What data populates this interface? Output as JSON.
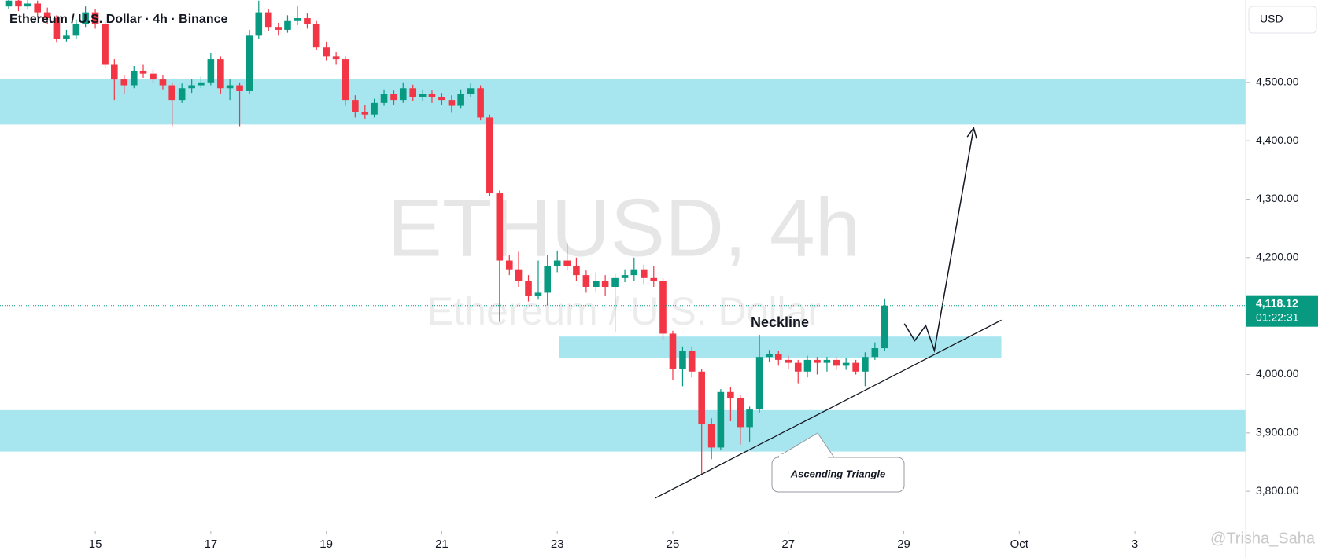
{
  "chart_data": {
    "type": "candlestick",
    "title": "Ethereum / U.S. Dollar · 4h · Binance",
    "currency": "USD",
    "watermark": "ETHUSD, 4h",
    "watermark_subtitle": "Ethereum / U.S. Dollar",
    "x": [
      13.5,
      13.67,
      13.83,
      14,
      14.17,
      14.33,
      14.5,
      14.67,
      14.83,
      15,
      15.17,
      15.33,
      15.5,
      15.67,
      15.83,
      16,
      16.17,
      16.33,
      16.5,
      16.67,
      16.83,
      17,
      17.17,
      17.33,
      17.5,
      17.67,
      17.83,
      18,
      18.17,
      18.33,
      18.5,
      18.67,
      18.83,
      19,
      19.17,
      19.33,
      19.5,
      19.67,
      19.83,
      20,
      20.17,
      20.33,
      20.5,
      20.67,
      20.83,
      21,
      21.17,
      21.33,
      21.5,
      21.67,
      21.83,
      22,
      22.17,
      22.33,
      22.5,
      22.67,
      22.83,
      23,
      23.17,
      23.33,
      23.5,
      23.67,
      23.83,
      24,
      24.17,
      24.33,
      24.5,
      24.67,
      24.83,
      25,
      25.17,
      25.33,
      25.5,
      25.67,
      25.83,
      26,
      26.17,
      26.33,
      26.5,
      26.67,
      26.83,
      27,
      27.17,
      27.33,
      27.5,
      27.67,
      27.83,
      28,
      28.17,
      28.33,
      28.5,
      28.67
    ],
    "open": [
      4630,
      4640,
      4630,
      4635,
      4620,
      4610,
      4575,
      4580,
      4600,
      4620,
      4600,
      4530,
      4505,
      4495,
      4520,
      4515,
      4505,
      4495,
      4470,
      4490,
      4495,
      4500,
      4540,
      4490,
      4495,
      4485,
      4580,
      4620,
      4595,
      4590,
      4605,
      4610,
      4600,
      4560,
      4545,
      4540,
      4470,
      4450,
      4445,
      4465,
      4480,
      4470,
      4490,
      4475,
      4480,
      4475,
      4470,
      4460,
      4480,
      4490,
      4440,
      4310,
      4195,
      4180,
      4160,
      4135,
      4140,
      4185,
      4195,
      4185,
      4170,
      4150,
      4160,
      4150,
      4165,
      4170,
      4180,
      4165,
      4160,
      4070,
      4010,
      4040,
      4005,
      3915,
      3875,
      3970,
      3960,
      3910,
      3940,
      4030,
      4035,
      4025,
      4020,
      4005,
      4025,
      4020,
      4025,
      4015,
      4020,
      4005,
      4030,
      4045
    ],
    "high": [
      4648,
      4645,
      4641,
      4640,
      4628,
      4615,
      4590,
      4608,
      4630,
      4625,
      4605,
      4540,
      4512,
      4528,
      4530,
      4522,
      4512,
      4500,
      4498,
      4505,
      4510,
      4550,
      4545,
      4505,
      4500,
      4590,
      4640,
      4625,
      4602,
      4615,
      4630,
      4618,
      4605,
      4570,
      4552,
      4545,
      4478,
      4462,
      4472,
      4488,
      4486,
      4500,
      4496,
      4488,
      4486,
      4482,
      4478,
      4488,
      4498,
      4495,
      4445,
      4315,
      4205,
      4210,
      4170,
      4195,
      4205,
      4212,
      4225,
      4200,
      4178,
      4175,
      4170,
      4172,
      4180,
      4200,
      4188,
      4185,
      4165,
      4075,
      4048,
      4048,
      4010,
      3925,
      3975,
      3978,
      3965,
      3945,
      4068,
      4042,
      4040,
      4032,
      4025,
      4032,
      4030,
      4030,
      4030,
      4028,
      4025,
      4038,
      4055,
      4130
    ],
    "low": [
      4625,
      4622,
      4625,
      4612,
      4600,
      4568,
      4570,
      4575,
      4595,
      4592,
      4525,
      4470,
      4480,
      4490,
      4508,
      4498,
      4488,
      4425,
      4465,
      4482,
      4490,
      4495,
      4480,
      4470,
      4425,
      4480,
      4575,
      4588,
      4580,
      4585,
      4598,
      4592,
      4555,
      4538,
      4530,
      4460,
      4440,
      4438,
      4440,
      4460,
      4462,
      4465,
      4468,
      4468,
      4465,
      4462,
      4448,
      4455,
      4475,
      4435,
      4305,
      4090,
      4170,
      4150,
      4125,
      4128,
      4118,
      4175,
      4178,
      4160,
      4140,
      4142,
      4135,
      4073,
      4158,
      4160,
      4155,
      4150,
      4060,
      3990,
      3980,
      3995,
      3830,
      3855,
      3870,
      3920,
      3880,
      3885,
      3935,
      4022,
      4015,
      4010,
      3985,
      3995,
      4000,
      4005,
      4008,
      4008,
      4000,
      3980,
      4025,
      4040
    ],
    "close": [
      4640,
      4630,
      4635,
      4620,
      4610,
      4575,
      4580,
      4600,
      4620,
      4600,
      4530,
      4505,
      4495,
      4520,
      4515,
      4505,
      4495,
      4470,
      4490,
      4495,
      4500,
      4540,
      4490,
      4495,
      4485,
      4580,
      4620,
      4595,
      4590,
      4605,
      4610,
      4600,
      4560,
      4545,
      4540,
      4470,
      4450,
      4445,
      4465,
      4480,
      4470,
      4490,
      4475,
      4480,
      4475,
      4470,
      4460,
      4480,
      4490,
      4440,
      4310,
      4195,
      4180,
      4160,
      4135,
      4140,
      4185,
      4195,
      4185,
      4170,
      4150,
      4160,
      4150,
      4165,
      4170,
      4180,
      4165,
      4160,
      4070,
      4010,
      4040,
      4005,
      3915,
      3875,
      3970,
      3960,
      3910,
      3940,
      4030,
      4035,
      4025,
      4020,
      4005,
      4025,
      4020,
      4025,
      4015,
      4020,
      4005,
      4030,
      4045,
      4118.12
    ],
    "up_color": "#089981",
    "down_color": "#f23645",
    "xlim": [
      13.35,
      34.92
    ],
    "ylim": [
      3737,
      4641
    ],
    "xticks": [
      15,
      17,
      19,
      21,
      23,
      25,
      27,
      29,
      {
        "value": 31,
        "label": "Oct"
      },
      {
        "value": 33,
        "label": "3"
      }
    ],
    "yticks": [
      {
        "value": 3800,
        "label": "3,800.00"
      },
      {
        "value": 3900,
        "label": "3,900.00"
      },
      {
        "value": 4000,
        "label": "4,000.00"
      },
      {
        "value": 4200,
        "label": "4,200.00"
      },
      {
        "value": 4300,
        "label": "4,300.00"
      },
      {
        "value": 4400,
        "label": "4,400.00"
      },
      {
        "value": 4500,
        "label": "4,500.00"
      }
    ],
    "last_price": {
      "value": 4118.12,
      "label": "4,118.12"
    },
    "countdown": "01:22:31",
    "zone_color": "#a8e6ef",
    "zones": [
      {
        "top": 4506,
        "bottom": 4428
      },
      {
        "top": 3939,
        "bottom": 3868
      },
      {
        "top": 4065,
        "bottom": 4028,
        "x": [
          23.03,
          30.69
        ]
      }
    ],
    "trendline": {
      "x": [
        24.69,
        30.69
      ],
      "y": [
        3788,
        4093
      ]
    },
    "projection": {
      "x": [
        29.01,
        29.19,
        29.38,
        29.53,
        30.21
      ],
      "y": [
        4087,
        4058,
        4084,
        4041,
        4422
      ]
    },
    "annotations": [
      "Neckline",
      "Ascending Triangle"
    ],
    "credit": "@Trisha_Saha"
  }
}
